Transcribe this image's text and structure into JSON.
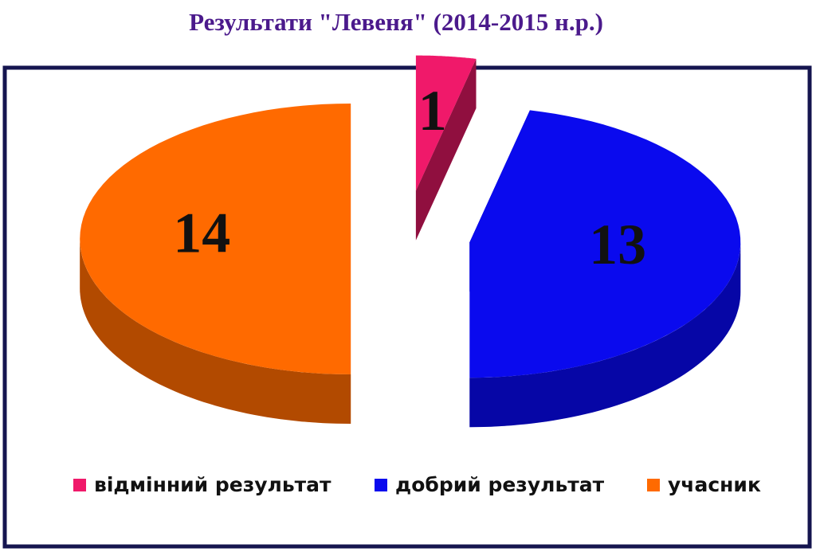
{
  "chart_data": {
    "type": "pie",
    "title": "Результати \"Левеня\" (2014-2015 н.р.)",
    "categories": [
      "відмінний результат",
      "добрий результат",
      "учасник"
    ],
    "values": [
      1,
      13,
      14
    ],
    "colors": [
      "#f0196a",
      "#0a0aee",
      "#ff6a00"
    ]
  }
}
